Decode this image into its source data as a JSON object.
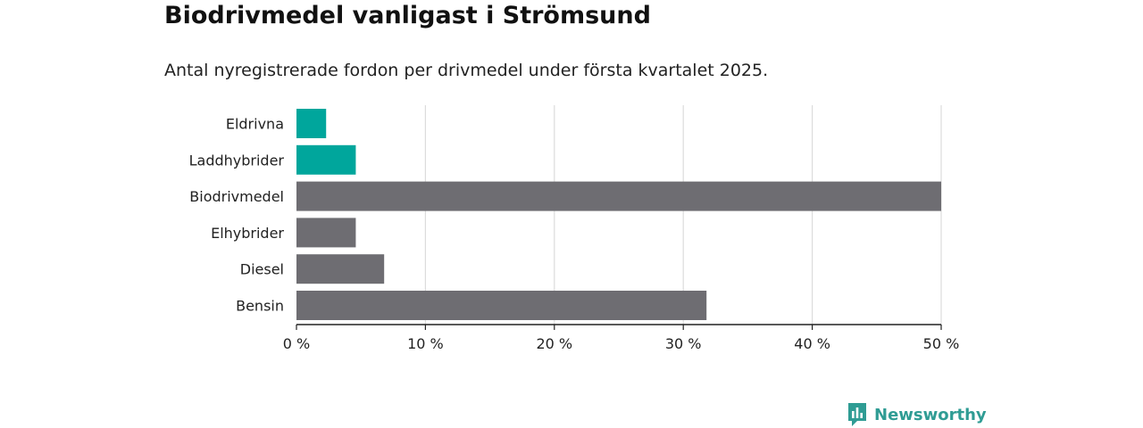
{
  "title": "Biodrivmedel vanligast i Strömsund",
  "subtitle": "Antal nyregistrerade fordon per drivmedel under första kvartalet 2025.",
  "brand": {
    "name": "Newsworthy",
    "color": "#2f9c94",
    "icon": "newsworthy-logo-icon"
  },
  "chart_data": {
    "type": "bar",
    "orientation": "horizontal",
    "categories": [
      "Eldrivna",
      "Laddhybrider",
      "Biodrivmedel",
      "Elhybrider",
      "Diesel",
      "Bensin"
    ],
    "values": [
      2.3,
      4.6,
      50.0,
      4.6,
      6.8,
      31.8
    ],
    "colors": [
      "#00a69c",
      "#00a69c",
      "#6e6d72",
      "#6e6d72",
      "#6e6d72",
      "#6e6d72"
    ],
    "xlim": [
      0,
      50
    ],
    "x_ticks": [
      0,
      10,
      20,
      30,
      40,
      50
    ],
    "x_tick_labels": [
      "0 %",
      "10 %",
      "20 %",
      "30 %",
      "40 %",
      "50 %"
    ],
    "grid": "vertical"
  }
}
